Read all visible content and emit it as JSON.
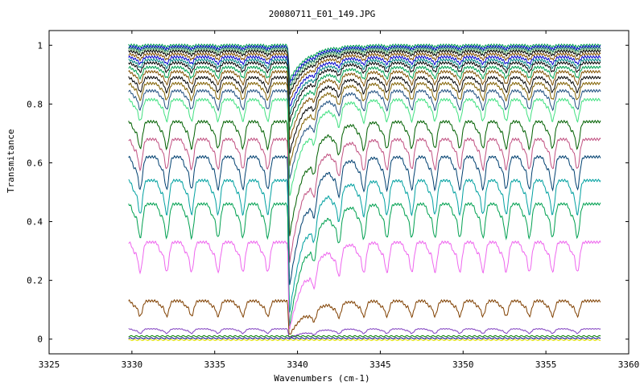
{
  "chart_data": {
    "type": "line",
    "title": "20080711_E01_149.JPG",
    "xlabel": "Wavenumbers (cm-1)",
    "ylabel": "Transmitance",
    "xlim": [
      3325,
      3360
    ],
    "ylim": [
      -0.05,
      1.05
    ],
    "x_ticks": [
      3325,
      3330,
      3335,
      3340,
      3345,
      3350,
      3355,
      3360
    ],
    "x_tick_labels": [
      "3325",
      "3330",
      "3335",
      "3340",
      "3345",
      "3350",
      "3355",
      "3360"
    ],
    "y_ticks": [
      0,
      0.2,
      0.4,
      0.6,
      0.8,
      1
    ],
    "y_tick_labels": [
      "0",
      "0.2",
      "0.4",
      "0.6",
      "0.8",
      "1"
    ],
    "grid": false,
    "x_range_data": [
      3329.8,
      3358.3
    ],
    "main_dip_position": 3339.5,
    "line_positions": [
      3330.5,
      3332.1,
      3333.6,
      3335.2,
      3336.7,
      3338.2,
      3341.0,
      3342.5,
      3344.0,
      3345.4,
      3346.9,
      3348.3,
      3349.8,
      3351.2,
      3352.6,
      3354.0,
      3355.4,
      3356.9
    ],
    "series": [
      {
        "baseline": 1.0,
        "color": "#00a050"
      },
      {
        "baseline": 0.995,
        "color": "#0000cc"
      },
      {
        "baseline": 0.99,
        "color": "#006060"
      },
      {
        "baseline": 0.985,
        "color": "#80c080"
      },
      {
        "baseline": 0.98,
        "color": "#000000"
      },
      {
        "baseline": 0.97,
        "color": "#805000"
      },
      {
        "baseline": 0.96,
        "color": "#0000cc"
      },
      {
        "baseline": 0.95,
        "color": "#008080"
      },
      {
        "baseline": 0.94,
        "color": "#000000"
      },
      {
        "baseline": 0.925,
        "color": "#00a050"
      },
      {
        "baseline": 0.91,
        "color": "#805000"
      },
      {
        "baseline": 0.89,
        "color": "#000000"
      },
      {
        "baseline": 0.87,
        "color": "#806000"
      },
      {
        "baseline": 0.845,
        "color": "#205080"
      },
      {
        "baseline": 0.815,
        "color": "#40e080"
      },
      {
        "baseline": 0.74,
        "color": "#006000"
      },
      {
        "baseline": 0.68,
        "color": "#c05080"
      },
      {
        "baseline": 0.62,
        "color": "#004070"
      },
      {
        "baseline": 0.54,
        "color": "#00a0a0"
      },
      {
        "baseline": 0.46,
        "color": "#00a050"
      },
      {
        "baseline": 0.33,
        "color": "#ee66ee"
      },
      {
        "baseline": 0.13,
        "color": "#804000"
      },
      {
        "baseline": 0.035,
        "color": "#8040c0"
      },
      {
        "baseline": 0.01,
        "color": "#008000"
      },
      {
        "baseline": 0.003,
        "color": "#000080"
      },
      {
        "baseline": -0.003,
        "color": "#e0e000"
      }
    ]
  }
}
